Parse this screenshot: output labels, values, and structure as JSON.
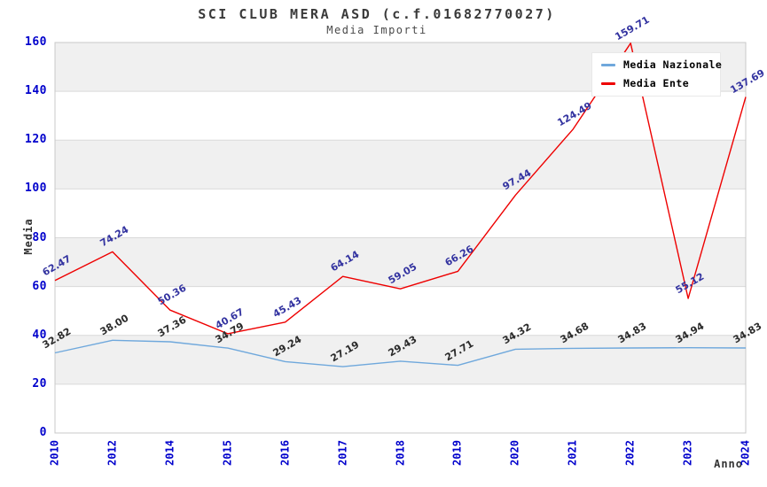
{
  "chart_data": {
    "type": "line",
    "title": "SCI CLUB MERA ASD (c.f.01682770027)",
    "subtitle": "Media Importi",
    "xlabel": "Anno",
    "ylabel": "Media",
    "categories": [
      "2010",
      "2012",
      "2014",
      "2015",
      "2016",
      "2017",
      "2018",
      "2019",
      "2020",
      "2021",
      "2022",
      "2023",
      "2024"
    ],
    "series": [
      {
        "name": "Media Nazionale",
        "color": "#6fa8dc",
        "label_color": "#2a2a2a",
        "values": [
          32.82,
          38.0,
          37.36,
          34.79,
          29.24,
          27.19,
          29.43,
          27.71,
          34.32,
          34.68,
          34.83,
          34.94,
          34.83
        ]
      },
      {
        "name": "Media Ente",
        "color": "#ee0000",
        "label_color": "#3333a0",
        "values": [
          62.47,
          74.24,
          50.36,
          40.67,
          45.43,
          64.14,
          59.05,
          66.26,
          97.44,
          124.49,
          159.71,
          55.12,
          137.69
        ]
      }
    ],
    "ylim": [
      0,
      160
    ],
    "yticks": [
      0,
      20,
      40,
      60,
      80,
      100,
      120,
      140,
      160
    ],
    "grid": true,
    "legend_position": "top-right",
    "colors": {
      "tick_label": "#0000cc",
      "band": "#f0f0f0",
      "band_alt": "#ffffff",
      "grid_line": "#d9d9d9",
      "plot_border": "#c8c8c8",
      "title_text": "#3a3a3a"
    }
  }
}
